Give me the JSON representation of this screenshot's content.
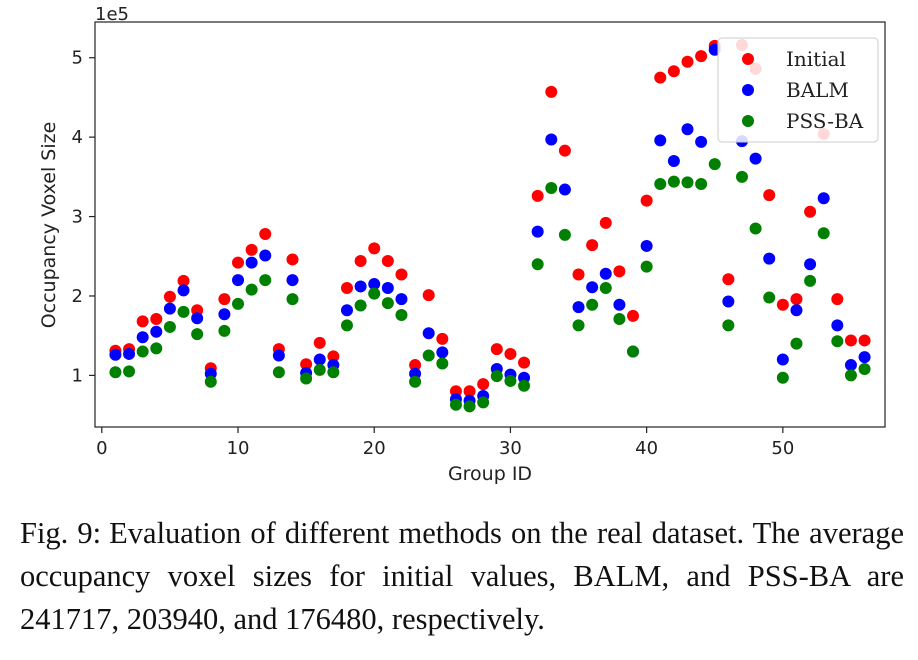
{
  "chart_data": {
    "type": "scatter",
    "xlabel": "Group ID",
    "ylabel": "Occupancy Voxel Size",
    "y_multiplier_label": "1e5",
    "xlim": [
      -0.5,
      57.5
    ],
    "ylim": [
      0.35,
      5.45
    ],
    "xticks": [
      0,
      10,
      20,
      30,
      40,
      50
    ],
    "yticks": [
      1,
      2,
      3,
      4,
      5
    ],
    "legend_position": "top-right",
    "x": [
      1,
      2,
      3,
      4,
      5,
      6,
      7,
      8,
      9,
      10,
      11,
      12,
      13,
      14,
      15,
      16,
      17,
      18,
      19,
      20,
      21,
      22,
      23,
      24,
      25,
      26,
      27,
      28,
      29,
      30,
      31,
      32,
      33,
      34,
      35,
      36,
      37,
      38,
      39,
      40,
      41,
      42,
      43,
      44,
      45,
      46,
      47,
      48,
      49,
      50,
      51,
      52,
      53,
      54,
      55,
      56
    ],
    "series": [
      {
        "name": "Initial",
        "color": "#ff0000",
        "values": [
          1.31,
          1.33,
          1.68,
          1.71,
          1.99,
          2.19,
          1.82,
          1.09,
          1.96,
          2.42,
          2.58,
          2.78,
          1.33,
          2.46,
          1.14,
          1.41,
          1.24,
          2.1,
          2.44,
          2.6,
          2.44,
          2.27,
          1.13,
          2.01,
          1.46,
          0.8,
          0.8,
          0.89,
          1.33,
          1.27,
          1.16,
          3.26,
          4.57,
          3.83,
          2.27,
          2.64,
          2.92,
          2.31,
          1.75,
          3.2,
          4.75,
          4.83,
          4.95,
          5.02,
          5.15,
          2.21,
          5.16,
          4.86,
          3.27,
          1.89,
          1.96,
          3.06,
          4.04,
          1.96,
          1.44,
          1.44
        ]
      },
      {
        "name": "BALM",
        "color": "#0000ff",
        "values": [
          1.26,
          1.27,
          1.48,
          1.55,
          1.84,
          2.07,
          1.72,
          1.02,
          1.77,
          2.2,
          2.42,
          2.51,
          1.25,
          2.2,
          1.03,
          1.2,
          1.13,
          1.82,
          2.12,
          2.15,
          2.1,
          1.96,
          1.02,
          1.53,
          1.29,
          0.7,
          0.68,
          0.74,
          1.08,
          1.01,
          0.97,
          2.81,
          3.97,
          3.34,
          1.86,
          2.11,
          2.28,
          1.89,
          1.3,
          2.63,
          3.96,
          3.7,
          4.1,
          3.94,
          5.1,
          1.93,
          3.95,
          3.73,
          2.47,
          1.2,
          1.82,
          2.4,
          3.23,
          1.63,
          1.13,
          1.23
        ]
      },
      {
        "name": "PSS-BA",
        "color": "#008000",
        "values": [
          1.04,
          1.05,
          1.3,
          1.34,
          1.61,
          1.8,
          1.52,
          0.92,
          1.56,
          1.9,
          2.08,
          2.2,
          1.04,
          1.96,
          0.96,
          1.07,
          1.04,
          1.63,
          1.88,
          2.03,
          1.91,
          1.76,
          0.92,
          1.25,
          1.15,
          0.63,
          0.61,
          0.66,
          0.99,
          0.93,
          0.87,
          2.4,
          3.36,
          2.77,
          1.63,
          1.89,
          2.1,
          1.71,
          1.3,
          2.37,
          3.41,
          3.44,
          3.43,
          3.41,
          3.66,
          1.63,
          3.5,
          2.85,
          1.98,
          0.97,
          1.4,
          2.19,
          2.79,
          1.43,
          1.0,
          1.08
        ]
      }
    ]
  },
  "caption": {
    "label": "Fig. 9:",
    "text": "Evaluation of different methods on the real dataset. The average occupancy voxel sizes for initial values, BALM, and PSS-BA are 241717, 203940, and 176480, respectively."
  }
}
